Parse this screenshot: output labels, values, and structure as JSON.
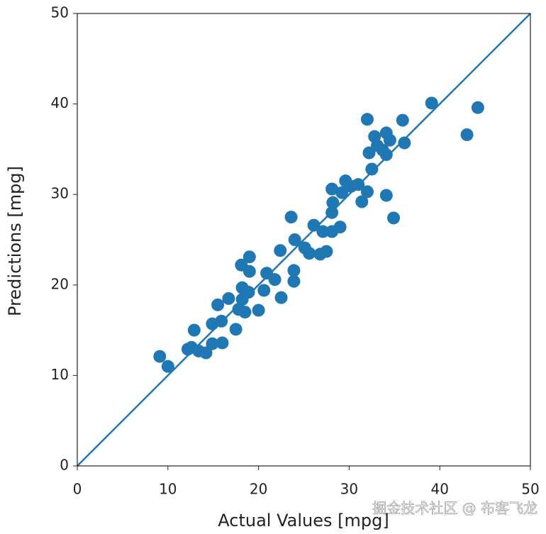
{
  "chart_data": {
    "type": "scatter",
    "xlabel": "Actual Values [mpg]",
    "ylabel": "Predictions [mpg]",
    "x": [
      9.1,
      10.0,
      12.9,
      12.2,
      12.6,
      13.4,
      14.2,
      14.9,
      16.0,
      14.9,
      15.9,
      15.5,
      16.7,
      17.5,
      17.8,
      18.2,
      18.2,
      18.9,
      18.1,
      19.0,
      19.0,
      18.5,
      20.0,
      20.6,
      20.9,
      21.8,
      22.5,
      22.4,
      23.6,
      23.9,
      23.9,
      24.0,
      25.1,
      25.6,
      26.1,
      26.8,
      27.1,
      27.5,
      28.1,
      28.1,
      28.2,
      28.1,
      29.0,
      29.2,
      29.6,
      30.2,
      31.0,
      31.4,
      32.0,
      32.2,
      32.0,
      32.5,
      32.8,
      33.1,
      33.7,
      34.1,
      34.1,
      34.5,
      34.1,
      34.9,
      35.9,
      36.1,
      39.1,
      43.0,
      44.2
    ],
    "y": [
      12.1,
      11.0,
      15.0,
      12.9,
      13.1,
      12.7,
      12.5,
      13.5,
      13.6,
      15.7,
      16.0,
      17.8,
      18.5,
      15.1,
      17.3,
      18.4,
      19.7,
      19.2,
      22.2,
      23.1,
      21.5,
      17.0,
      17.2,
      19.4,
      21.3,
      20.6,
      18.6,
      23.8,
      27.5,
      21.6,
      20.4,
      25.0,
      24.1,
      23.5,
      26.6,
      23.4,
      25.9,
      23.7,
      25.9,
      28.0,
      29.1,
      30.6,
      26.4,
      30.2,
      31.5,
      30.9,
      31.1,
      29.2,
      30.3,
      34.6,
      38.3,
      32.8,
      36.4,
      35.4,
      34.9,
      36.8,
      34.4,
      36.0,
      29.9,
      27.4,
      38.2,
      35.7,
      40.1,
      36.6,
      39.6
    ],
    "color": "#1f77b4",
    "reference_line": {
      "x": [
        0,
        50
      ],
      "y": [
        0,
        50
      ],
      "color": "#1f77b4"
    },
    "xlim": [
      0,
      50
    ],
    "ylim": [
      0,
      50
    ],
    "xticks": [
      0,
      10,
      20,
      30,
      40,
      50
    ],
    "yticks": [
      0,
      10,
      20,
      30,
      40,
      50
    ]
  },
  "watermark": "掘金技术社区 @ 布客飞龙"
}
